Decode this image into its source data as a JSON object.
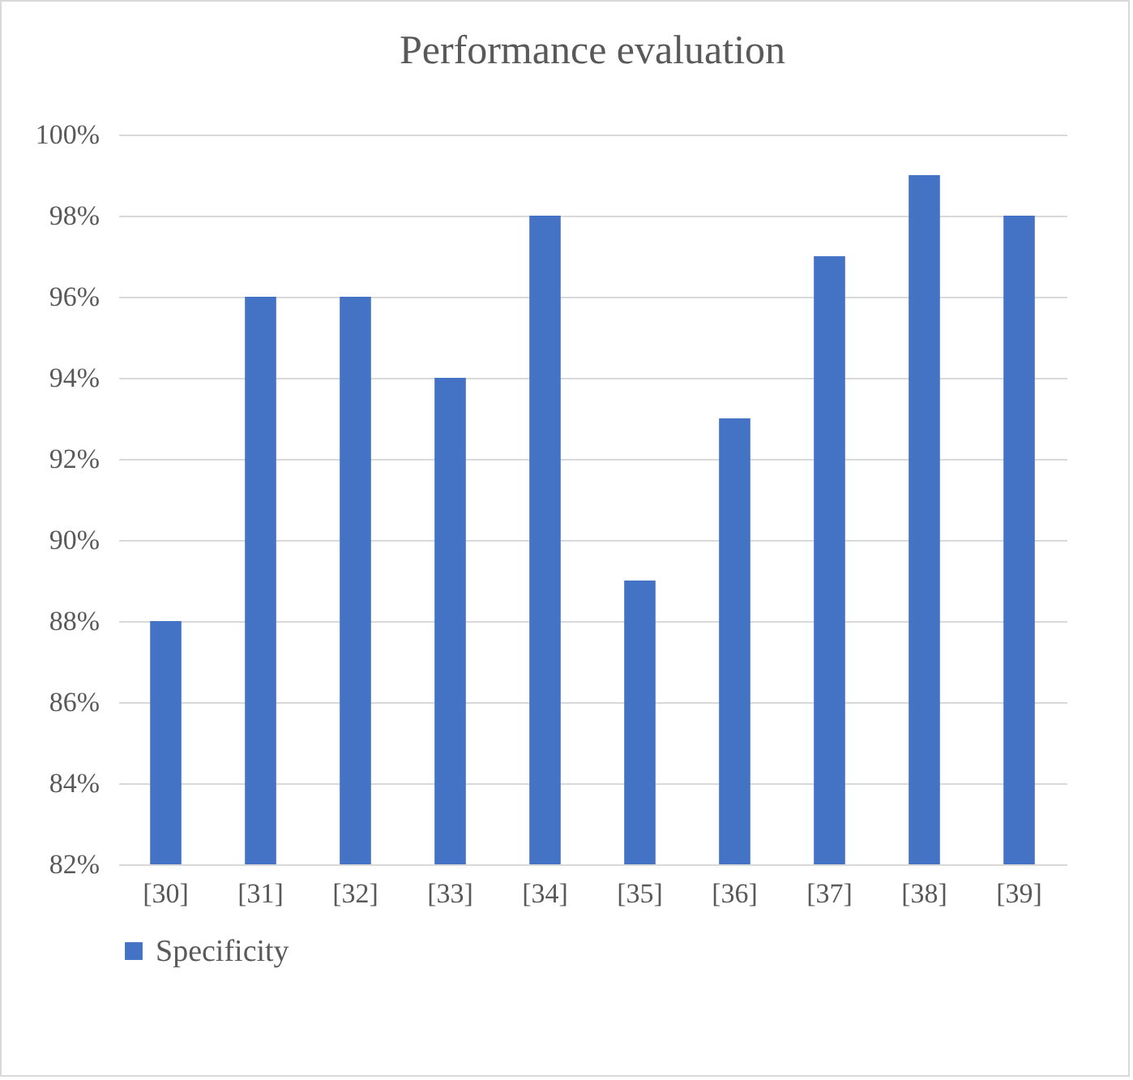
{
  "chart_data": {
    "type": "bar",
    "title": "Performance evaluation",
    "categories": [
      "[30]",
      "[31]",
      "[32]",
      "[33]",
      "[34]",
      "[35]",
      "[36]",
      "[37]",
      "[38]",
      "[39]"
    ],
    "series": [
      {
        "name": "Specificity",
        "color": "#4472c4",
        "values": [
          88,
          96,
          96,
          94,
          98,
          89,
          93,
          97,
          99,
          98
        ]
      }
    ],
    "ylim": [
      82,
      100
    ],
    "yticks": [
      {
        "value": 82,
        "label": "82%"
      },
      {
        "value": 84,
        "label": "84%"
      },
      {
        "value": 86,
        "label": "86%"
      },
      {
        "value": 88,
        "label": "88%"
      },
      {
        "value": 90,
        "label": "90%"
      },
      {
        "value": 92,
        "label": "92%"
      },
      {
        "value": 94,
        "label": "94%"
      },
      {
        "value": 96,
        "label": "96%"
      },
      {
        "value": 98,
        "label": "98%"
      },
      {
        "value": 100,
        "label": "100%"
      }
    ],
    "grid": "y",
    "legend": "bottom"
  }
}
